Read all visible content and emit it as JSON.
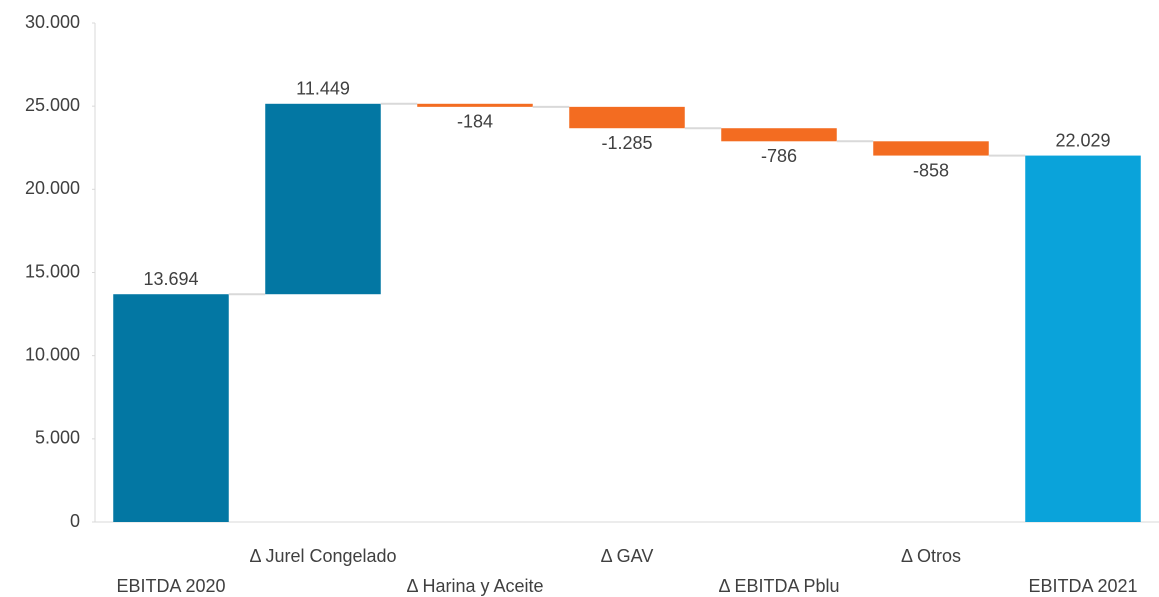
{
  "chart_data": {
    "type": "waterfall",
    "categories": [
      "EBITDA 2020",
      "Δ Jurel Congelado",
      "Δ Harina y Aceite",
      "Δ GAV",
      "Δ EBITDA Pblu",
      "Δ Otros",
      "EBITDA 2021"
    ],
    "values": [
      13694,
      11449,
      -184,
      -1285,
      -786,
      -858,
      22029
    ],
    "value_labels": [
      "13.694",
      "11.449",
      "-184",
      "-1.285",
      "-786",
      "-858",
      "22.029"
    ],
    "measures": [
      "absolute",
      "relative",
      "relative",
      "relative",
      "relative",
      "relative",
      "total"
    ],
    "colors": [
      "#0377a3",
      "#0377a3",
      "#f36c21",
      "#f36c21",
      "#f36c21",
      "#f36c21",
      "#0aa3da"
    ],
    "ylim": [
      0,
      30000
    ],
    "yticks": [
      0,
      {
        "value": 5000,
        "label": "5.000"
      },
      {
        "value": 10000,
        "label": "10.000"
      },
      {
        "value": 15000,
        "label": "15.000"
      },
      {
        "value": 20000,
        "label": "20.000"
      },
      {
        "value": 25000,
        "label": "25.000"
      },
      {
        "value": 30000,
        "label": "30.000"
      }
    ],
    "grid": false
  }
}
